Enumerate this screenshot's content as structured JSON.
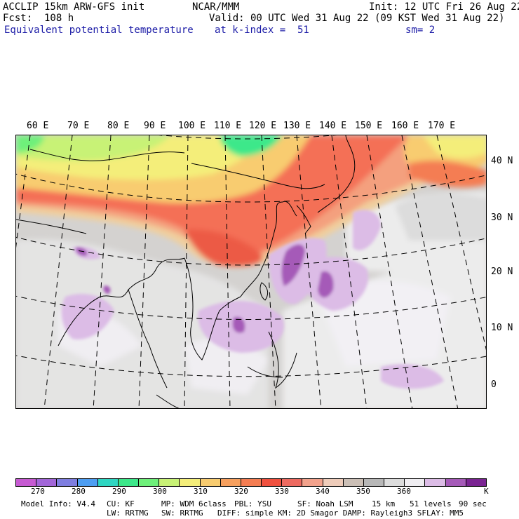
{
  "header": {
    "model": "ACCLIP 15km ARW-GFS init",
    "forecast": "Fcst:  108 h",
    "field": "Equivalent potential temperature",
    "org": "NCAR/MMM",
    "valid": "Valid: 00 UTC Wed 31 Aug 22 (09 KST Wed 31 Aug 22)",
    "level": "at k-index =  51",
    "init": "Init: 12 UTC Fri 26 Aug 22",
    "smooth": "sm= 2"
  },
  "longitude_labels": [
    "60 E",
    "70 E",
    "80 E",
    "90 E",
    "100 E",
    "110 E",
    "120 E",
    "130 E",
    "140 E",
    "150 E",
    "160 E",
    "170 E"
  ],
  "latitude_labels": [
    "40 N",
    "30 N",
    "20 N",
    "10 N",
    "0"
  ],
  "colorbar": {
    "colors": [
      "#c65ad2",
      "#a266d8",
      "#7f7ee0",
      "#4e9ef2",
      "#2fd6c2",
      "#3ce88a",
      "#6ef07a",
      "#c8f276",
      "#f4ee7a",
      "#f8cc70",
      "#f7a05e",
      "#f47d52",
      "#f0503e",
      "#ed6a60",
      "#f2a28c",
      "#eeccba",
      "#cbbfb6",
      "#b7b7b7",
      "#dcdcdc",
      "#f0eef2",
      "#dcbce6",
      "#a55ab8",
      "#7a2492"
    ],
    "labels": [
      "270",
      "280",
      "290",
      "300",
      "310",
      "320",
      "330",
      "340",
      "350",
      "360"
    ],
    "unit": "K"
  },
  "footer": {
    "line1": [
      {
        "label": "Model Info: V4.4"
      },
      {
        "label": "CU: KF"
      },
      {
        "label": "MP: WDM 6class"
      },
      {
        "label": "PBL: YSU"
      },
      {
        "label": "SF: Noah LSM"
      },
      {
        "label": "15 km"
      },
      {
        "label": "51 levels"
      },
      {
        "label": "90 sec"
      }
    ],
    "line2": [
      {
        "label": "LW: RRTMG"
      },
      {
        "label": "SW: RRTMG"
      },
      {
        "label": "DIFF: simple KM: 2D Smagor DAMP: Rayleigh3 SFLAY: MM5"
      }
    ]
  }
}
